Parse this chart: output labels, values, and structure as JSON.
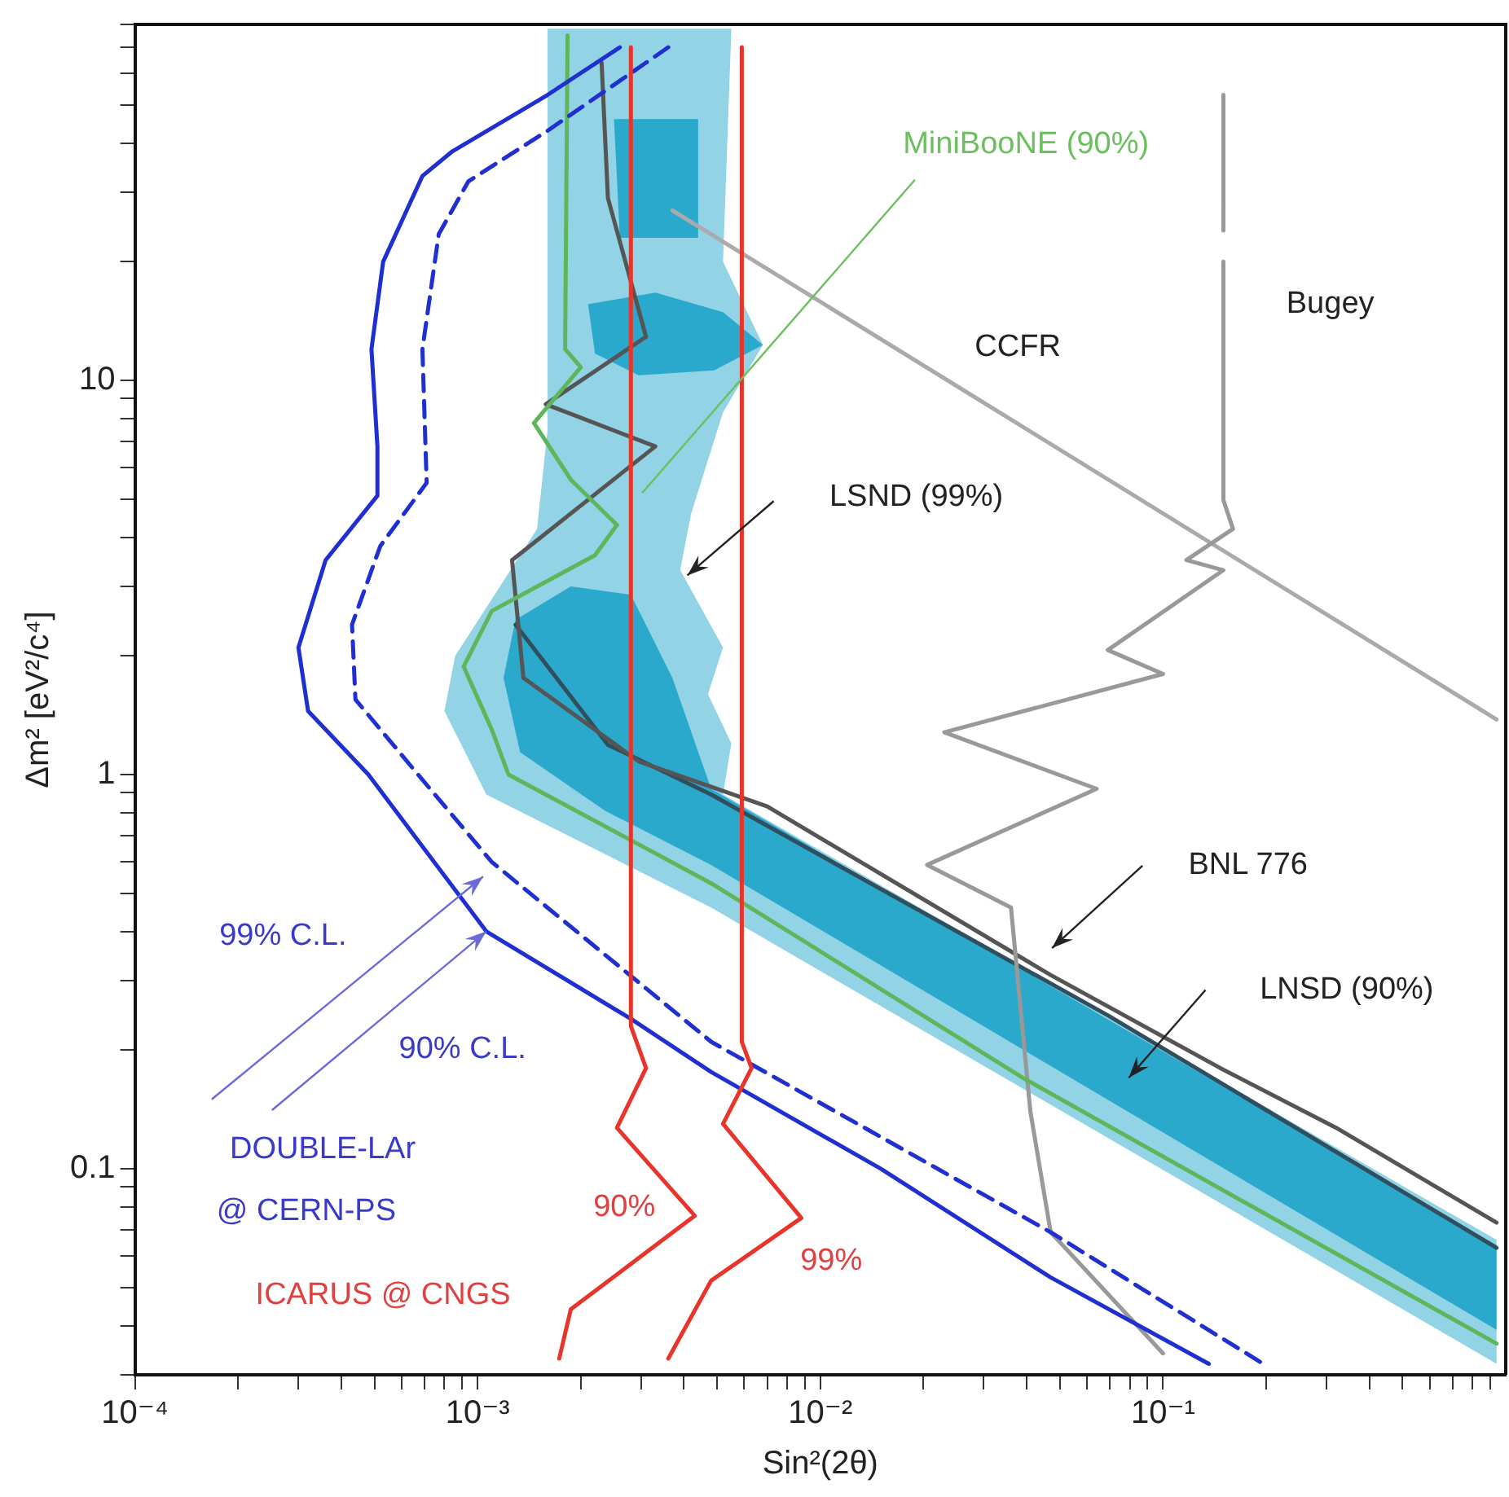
{
  "chart_data": {
    "type": "line",
    "xlabel": "Sin²(2θ)",
    "ylabel": "Δm² [eV²/c⁴]",
    "log": "xy",
    "grid": false,
    "legend": false,
    "marker": "none",
    "xlim": [
      0.0001,
      1
    ],
    "ylim": [
      0.03,
      80
    ],
    "xticks": [
      {
        "value": 0.0001,
        "label": "10⁻⁴"
      },
      {
        "value": 0.0002,
        "label": null
      },
      {
        "value": 0.0003,
        "label": null
      },
      {
        "value": 0.0004,
        "label": null
      },
      {
        "value": 0.0005,
        "label": null
      },
      {
        "value": 0.0006,
        "label": null
      },
      {
        "value": 0.0007,
        "label": null
      },
      {
        "value": 0.0008,
        "label": null
      },
      {
        "value": 0.0009,
        "label": null
      },
      {
        "value": 0.001,
        "label": "10⁻³"
      },
      {
        "value": 0.002,
        "label": null
      },
      {
        "value": 0.003,
        "label": null
      },
      {
        "value": 0.004,
        "label": null
      },
      {
        "value": 0.005,
        "label": null
      },
      {
        "value": 0.006,
        "label": null
      },
      {
        "value": 0.007,
        "label": null
      },
      {
        "value": 0.008,
        "label": null
      },
      {
        "value": 0.009,
        "label": null
      },
      {
        "value": 0.01,
        "label": "10⁻²"
      },
      {
        "value": 0.02,
        "label": null
      },
      {
        "value": 0.03,
        "label": null
      },
      {
        "value": 0.04,
        "label": null
      },
      {
        "value": 0.05,
        "label": null
      },
      {
        "value": 0.06,
        "label": null
      },
      {
        "value": 0.07,
        "label": null
      },
      {
        "value": 0.08,
        "label": null
      },
      {
        "value": 0.09,
        "label": null
      },
      {
        "value": 0.1,
        "label": "10⁻¹"
      },
      {
        "value": 0.2,
        "label": null
      },
      {
        "value": 0.3,
        "label": null
      },
      {
        "value": 0.4,
        "label": null
      },
      {
        "value": 0.5,
        "label": null
      },
      {
        "value": 0.6,
        "label": null
      },
      {
        "value": 0.7,
        "label": null
      },
      {
        "value": 0.8,
        "label": null
      },
      {
        "value": 0.9,
        "label": null
      }
    ],
    "yticks": [
      {
        "value": 0.03,
        "label": null
      },
      {
        "value": 0.04,
        "label": null
      },
      {
        "value": 0.05,
        "label": null
      },
      {
        "value": 0.06,
        "label": null
      },
      {
        "value": 0.07,
        "label": null
      },
      {
        "value": 0.08,
        "label": null
      },
      {
        "value": 0.09,
        "label": null
      },
      0.1,
      {
        "value": 0.2,
        "label": null
      },
      {
        "value": 0.3,
        "label": null
      },
      {
        "value": 0.4,
        "label": null
      },
      {
        "value": 0.5,
        "label": null
      },
      {
        "value": 0.6,
        "label": null
      },
      {
        "value": 0.7,
        "label": null
      },
      {
        "value": 0.8,
        "label": null
      },
      {
        "value": 0.9,
        "label": null
      },
      1,
      {
        "value": 2,
        "label": null
      },
      {
        "value": 3,
        "label": null
      },
      {
        "value": 4,
        "label": null
      },
      {
        "value": 5,
        "label": null
      },
      {
        "value": 6,
        "label": null
      },
      {
        "value": 7,
        "label": null
      },
      {
        "value": 8,
        "label": null
      },
      {
        "value": 9,
        "label": null
      },
      10,
      {
        "value": 20,
        "label": null
      },
      {
        "value": 30,
        "label": null
      },
      {
        "value": 40,
        "label": null
      },
      {
        "value": 50,
        "label": null
      },
      {
        "value": 60,
        "label": null
      },
      {
        "value": 70,
        "label": null
      },
      {
        "value": 80,
        "label": null
      }
    ],
    "series": [
      {
        "type": "area",
        "color": "#92d3e6",
        "x": [
          0.0016,
          0.0055,
          0.0052,
          0.0068,
          0.0052,
          0.0042,
          0.0039,
          0.0052,
          0.0047,
          0.0055,
          0.0052,
          0.94,
          0.94,
          0.0048,
          0.00106,
          0.0008,
          0.00086,
          0.00119,
          0.00149,
          0.0016
        ],
        "values": [
          78,
          78,
          20,
          12.3,
          8.3,
          4.6,
          3.3,
          2.1,
          1.6,
          1.2,
          0.89,
          0.066,
          0.032,
          0.46,
          0.89,
          1.45,
          2.0,
          3.1,
          4.2,
          7.5
        ]
      },
      {
        "type": "area",
        "color": "#2aa9cc",
        "x": [
          0.00129,
          0.00187,
          0.0028,
          0.0037,
          0.0048,
          0.94,
          0.94,
          0.0048,
          0.00235,
          0.00133,
          0.00119
        ],
        "values": [
          2.47,
          3.0,
          2.86,
          1.76,
          0.92,
          0.064,
          0.039,
          0.59,
          0.81,
          1.14,
          1.76
        ]
      },
      {
        "type": "area",
        "color": "#2aa9cc",
        "x": [
          0.0021,
          0.0033,
          0.0052,
          0.0068,
          0.0049,
          0.00295,
          0.0022
        ],
        "values": [
          15.6,
          16.7,
          14.9,
          12.3,
          10.6,
          10.3,
          11.7
        ]
      },
      {
        "type": "area",
        "color": "#2aa9cc",
        "x": [
          0.0025,
          0.0044,
          0.0044,
          0.0026
        ],
        "values": [
          46,
          46,
          23,
          23
        ]
      },
      {
        "color": "#2f4f5f",
        "x": [
          0.00129,
          0.0024,
          0.0048,
          0.069,
          0.94
        ],
        "values": [
          2.4,
          1.19,
          0.89,
          0.245,
          0.063
        ]
      },
      {
        "color": "#555555",
        "x": [
          0.0023,
          0.0024,
          0.0031,
          0.00158,
          0.0033,
          0.00126,
          0.00136,
          0.00295,
          0.007,
          0.047,
          0.147,
          0.32,
          0.94
        ],
        "values": [
          64,
          29,
          12.9,
          8.7,
          6.8,
          3.5,
          1.76,
          1.08,
          0.83,
          0.31,
          0.18,
          0.127,
          0.073
        ]
      },
      {
        "color": "#aaaaaa",
        "x": [
          0.0037,
          0.94
        ],
        "values": [
          27,
          1.38
        ]
      },
      {
        "color": "#999999",
        "x": [
          0.15,
          0.15,
          null,
          0.15,
          0.15,
          0.16,
          0.117,
          0.15,
          0.069,
          0.1,
          0.023,
          0.064,
          0.0205,
          0.036,
          0.041,
          0.047,
          0.1
        ],
        "values": [
          53,
          24,
          null,
          20,
          4.97,
          4.2,
          3.5,
          3.3,
          2.07,
          1.8,
          1.28,
          0.92,
          0.59,
          0.46,
          0.14,
          0.069,
          0.034
        ]
      },
      {
        "color": "#5fb55a",
        "x": [
          0.00183,
          0.0018,
          0.002,
          0.00146,
          0.00187,
          0.00255,
          0.0022,
          0.0011,
          0.00091,
          0.0011,
          0.00123,
          0.0048,
          0.039,
          0.94
        ],
        "values": [
          75,
          12,
          10.8,
          7.8,
          5.6,
          4.3,
          3.6,
          2.6,
          1.88,
          1.3,
          1.0,
          0.53,
          0.17,
          0.036
        ]
      },
      {
        "color": "#1f2fd0",
        "x": [
          0.0026,
          0.0016,
          0.00084,
          0.00069,
          0.00053,
          0.00049,
          0.00051,
          0.00051,
          0.00036,
          0.0003,
          0.00032,
          0.00048,
          0.00106,
          0.0028,
          0.0048,
          0.015,
          0.047,
          0.136
        ],
        "values": [
          70,
          53,
          38,
          33,
          20,
          12,
          6.8,
          5.1,
          3.5,
          2.1,
          1.45,
          1.0,
          0.4,
          0.24,
          0.176,
          0.1,
          0.053,
          0.032
        ]
      },
      {
        "color": "#1f2fd0",
        "line_style": "dashed",
        "x": [
          0.0036,
          0.0016,
          0.00094,
          0.00077,
          0.00069,
          0.00071,
          0.00052,
          0.00043,
          0.00044,
          0.00067,
          0.0011,
          0.0048,
          0.047,
          0.196
        ],
        "values": [
          70,
          43,
          32,
          23.5,
          12,
          5.5,
          3.8,
          2.4,
          1.55,
          1.0,
          0.6,
          0.21,
          0.069,
          0.032
        ]
      },
      {
        "color": "#e8352b",
        "x": [
          0.0028,
          0.0028,
          0.0031,
          0.00255,
          0.0043,
          0.00187,
          0.00173
        ],
        "values": [
          70,
          0.23,
          0.18,
          0.127,
          0.076,
          0.044,
          0.033
        ]
      },
      {
        "color": "#e8352b",
        "x": [
          0.0059,
          0.0059,
          0.0063,
          0.0052,
          0.0088,
          0.0048,
          0.0036
        ],
        "values": [
          70,
          0.21,
          0.18,
          0.13,
          0.075,
          0.052,
          0.033
        ]
      }
    ],
    "annotations": [
      "MiniBooNE (90%)",
      "CCFR",
      "Bugey",
      "LSND (99%)",
      "BNL 776",
      "LNSD (90%)",
      "99% C.L.",
      "90% C.L.",
      {
        "text": "DOUBLE-LAr",
        "x": 0.00106,
        "y": 0.4
      },
      "@ CERN-PS",
      "90%",
      "99%",
      "ICARUS @ CNGS"
    ]
  }
}
